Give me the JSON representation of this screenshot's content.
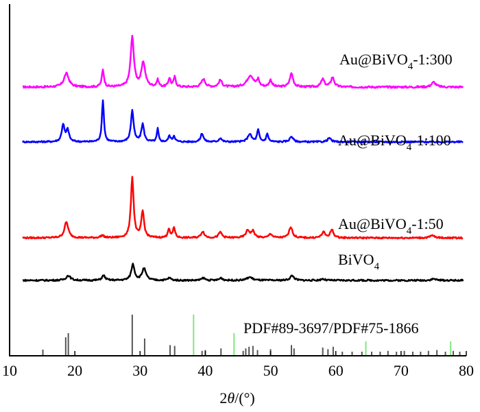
{
  "chart_data": {
    "type": "line",
    "title": "",
    "xlabel": "2θ/(°)",
    "ylabel": "",
    "xlim": [
      10,
      80
    ],
    "x_ticks": [
      10,
      20,
      30,
      40,
      50,
      60,
      70,
      80
    ],
    "grid": false,
    "legend": "labels placed above each curve at right",
    "series": [
      {
        "name": "Au@BiVO4-1:300",
        "label_main": "Au@BiVO",
        "label_sub": "4",
        "label_tail": "-1:300",
        "color": "#ff00ff",
        "baseline": 0.6,
        "peaks": [
          [
            18.7,
            0.28,
            0.45
          ],
          [
            24.3,
            0.35,
            0.2
          ],
          [
            28.8,
            1.02,
            0.3
          ],
          [
            30.5,
            0.5,
            0.35
          ],
          [
            32.7,
            0.14,
            0.2
          ],
          [
            34.5,
            0.18,
            0.2
          ],
          [
            35.3,
            0.2,
            0.2
          ],
          [
            39.7,
            0.16,
            0.35
          ],
          [
            42.3,
            0.14,
            0.3
          ],
          [
            46.9,
            0.24,
            0.6
          ],
          [
            48.1,
            0.14,
            0.2
          ],
          [
            50.0,
            0.14,
            0.25
          ],
          [
            53.2,
            0.28,
            0.3
          ],
          [
            58.0,
            0.16,
            0.3
          ],
          [
            59.5,
            0.2,
            0.3
          ],
          [
            75.0,
            0.1,
            0.4
          ]
        ]
      },
      {
        "name": "Au@BiVO4-1:100",
        "label_main": "Au@BiVO",
        "label_sub": "4",
        "label_tail": "-1:100",
        "color": "#0000ff",
        "baseline": 0.6,
        "peaks": [
          [
            18.2,
            0.44,
            0.25
          ],
          [
            18.9,
            0.3,
            0.25
          ],
          [
            24.3,
            1.08,
            0.18
          ],
          [
            28.8,
            0.8,
            0.25
          ],
          [
            30.4,
            0.45,
            0.25
          ],
          [
            32.7,
            0.34,
            0.15
          ],
          [
            34.5,
            0.15,
            0.2
          ],
          [
            35.2,
            0.15,
            0.2
          ],
          [
            39.5,
            0.22,
            0.25
          ],
          [
            42.3,
            0.1,
            0.25
          ],
          [
            46.8,
            0.2,
            0.35
          ],
          [
            48.1,
            0.3,
            0.2
          ],
          [
            49.5,
            0.2,
            0.2
          ],
          [
            53.2,
            0.14,
            0.3
          ],
          [
            59.0,
            0.1,
            0.3
          ]
        ]
      },
      {
        "name": "Au@BiVO4-1:50",
        "label_main": "Au@BiVO",
        "label_sub": "4",
        "label_tail": "-1:50",
        "color": "#ff0000",
        "baseline": 0.6,
        "peaks": [
          [
            18.7,
            0.4,
            0.35
          ],
          [
            24.2,
            0.06,
            0.3
          ],
          [
            28.8,
            1.52,
            0.25
          ],
          [
            30.4,
            0.66,
            0.25
          ],
          [
            34.4,
            0.22,
            0.2
          ],
          [
            35.2,
            0.26,
            0.2
          ],
          [
            39.6,
            0.16,
            0.3
          ],
          [
            42.3,
            0.14,
            0.3
          ],
          [
            46.5,
            0.18,
            0.35
          ],
          [
            47.3,
            0.16,
            0.3
          ],
          [
            50.0,
            0.1,
            0.3
          ],
          [
            53.1,
            0.28,
            0.3
          ],
          [
            58.1,
            0.14,
            0.3
          ],
          [
            59.4,
            0.2,
            0.3
          ],
          [
            74.8,
            0.06,
            0.4
          ]
        ]
      },
      {
        "name": "BiVO4",
        "label_main": "BiVO",
        "label_sub": "4",
        "label_tail": "",
        "color": "#000000",
        "baseline": 0.6,
        "peaks": [
          [
            19.0,
            0.12,
            0.4
          ],
          [
            24.4,
            0.12,
            0.3
          ],
          [
            28.9,
            0.4,
            0.3
          ],
          [
            30.6,
            0.3,
            0.35
          ],
          [
            34.5,
            0.06,
            0.3
          ],
          [
            39.7,
            0.06,
            0.3
          ],
          [
            42.4,
            0.06,
            0.3
          ],
          [
            46.8,
            0.08,
            0.5
          ],
          [
            53.3,
            0.12,
            0.35
          ],
          [
            58.0,
            0.04,
            0.3
          ],
          [
            75.0,
            0.04,
            0.4
          ]
        ]
      }
    ],
    "reference": {
      "label": "PDF#89-3697/PDF#75-1866",
      "gray_lines": [
        [
          15.1,
          0.15
        ],
        [
          18.6,
          0.45
        ],
        [
          19.0,
          0.55
        ],
        [
          28.8,
          1.0
        ],
        [
          30.7,
          0.42
        ],
        [
          34.6,
          0.26
        ],
        [
          35.3,
          0.24
        ],
        [
          39.5,
          0.12
        ],
        [
          40.0,
          0.14
        ],
        [
          42.4,
          0.18
        ],
        [
          45.8,
          0.12
        ],
        [
          46.2,
          0.18
        ],
        [
          46.7,
          0.22
        ],
        [
          47.3,
          0.24
        ],
        [
          48.0,
          0.14
        ],
        [
          50.0,
          0.16
        ],
        [
          53.2,
          0.26
        ],
        [
          53.6,
          0.18
        ],
        [
          58.0,
          0.2
        ],
        [
          58.8,
          0.16
        ],
        [
          59.6,
          0.22
        ],
        [
          61.0,
          0.1
        ],
        [
          62.5,
          0.1
        ],
        [
          64.0,
          0.1
        ],
        [
          65.5,
          0.1
        ],
        [
          66.8,
          0.1
        ],
        [
          68.0,
          0.12
        ],
        [
          69.3,
          0.1
        ],
        [
          70.5,
          0.12
        ],
        [
          71.8,
          0.1
        ],
        [
          73.0,
          0.1
        ],
        [
          74.2,
          0.12
        ],
        [
          75.5,
          0.14
        ],
        [
          76.8,
          0.1
        ],
        [
          78.0,
          0.12
        ],
        [
          79.0,
          0.1
        ]
      ],
      "green_lines": [
        [
          38.2,
          1.0
        ],
        [
          44.4,
          0.55
        ],
        [
          64.6,
          0.35
        ],
        [
          77.6,
          0.35
        ]
      ]
    },
    "colors": {
      "gray_ref": "#555555",
      "green_ref": "#7ee87e"
    }
  }
}
